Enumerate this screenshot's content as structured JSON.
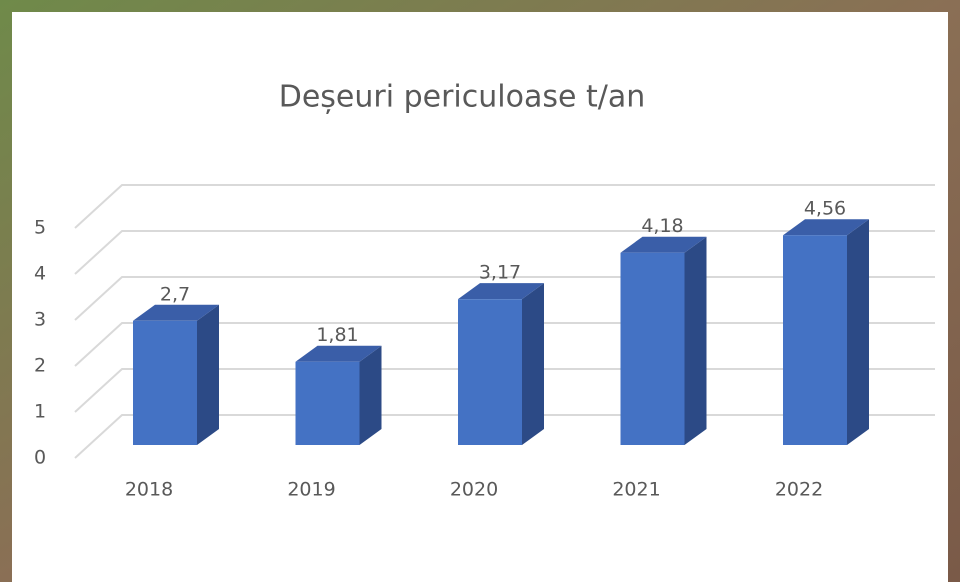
{
  "chart_data": {
    "type": "bar3d",
    "title": "Deșeuri periculoase t/an",
    "categories": [
      "2018",
      "2019",
      "2020",
      "2021",
      "2022"
    ],
    "values": [
      2.7,
      1.81,
      3.17,
      4.18,
      4.56
    ],
    "value_labels": [
      "2,7",
      "1,81",
      "3,17",
      "4,18",
      "4,56"
    ],
    "color": "#4472c4",
    "ylim": [
      0,
      5
    ],
    "yticks": [
      0,
      1,
      2,
      3,
      4,
      5
    ],
    "grid": true
  }
}
